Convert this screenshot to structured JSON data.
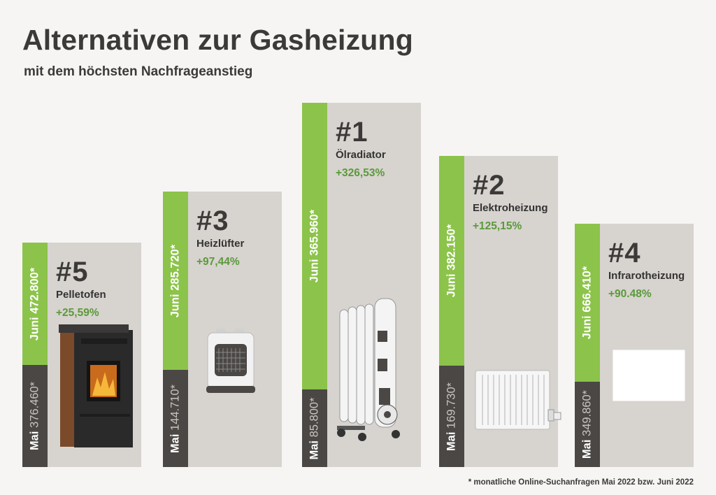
{
  "header": {
    "title": "Alternativen zur Gasheizung",
    "subtitle": "mit dem höchsten Nachfrageanstieg"
  },
  "footnote": "* monatliche Online-Suchanfragen Mai 2022 bzw. Juni 2022",
  "chart_data": {
    "type": "bar",
    "title": "Alternativen zur Gasheizung",
    "subtitle": "mit dem höchsten Nachfrageanstieg",
    "categories": [
      "Pelletofen",
      "Heizlüfter",
      "Ölradiator",
      "Elektroheizung",
      "Infrarotheizung"
    ],
    "series": [
      {
        "name": "Mai",
        "values": [
          376460,
          144710,
          85800,
          169730,
          349860
        ]
      },
      {
        "name": "Juni",
        "values": [
          472800,
          285720,
          365960,
          382150,
          666410
        ]
      }
    ],
    "items": [
      {
        "rank": "#5",
        "name": "Pelletofen",
        "change": "+25,59%",
        "change_value": 25.59,
        "june_label": "Juni",
        "june_value": "472.800*",
        "may_label": "Mai",
        "may_value": "376.460*",
        "icon": "pellet-stove-icon"
      },
      {
        "rank": "#3",
        "name": "Heizlüfter",
        "change": "+97,44%",
        "change_value": 97.44,
        "june_label": "Juni",
        "june_value": "285.720*",
        "may_label": "Mai",
        "may_value": "144.710*",
        "icon": "fan-heater-icon"
      },
      {
        "rank": "#1",
        "name": "Ölradiator",
        "change": "+326,53%",
        "change_value": 326.53,
        "june_label": "Juni",
        "june_value": "365.960*",
        "may_label": "Mai",
        "may_value": "85.800*",
        "icon": "oil-radiator-icon"
      },
      {
        "rank": "#2",
        "name": "Elektroheizung",
        "change": "+125,15%",
        "change_value": 125.15,
        "june_label": "Juni",
        "june_value": "382.150*",
        "may_label": "Mai",
        "may_value": "169.730*",
        "icon": "electric-heater-icon"
      },
      {
        "rank": "#4",
        "name": "Infrarotheizung",
        "change": "+90.48%",
        "change_value": 90.48,
        "june_label": "Juni",
        "june_value": "666.410*",
        "may_label": "Mai",
        "may_value": "349.860*",
        "icon": "infrared-panel-icon"
      }
    ],
    "colors": {
      "june": "#8cc34a",
      "may": "#4a4745",
      "card": "#d7d3cf",
      "change": "#5a9a3a"
    }
  }
}
